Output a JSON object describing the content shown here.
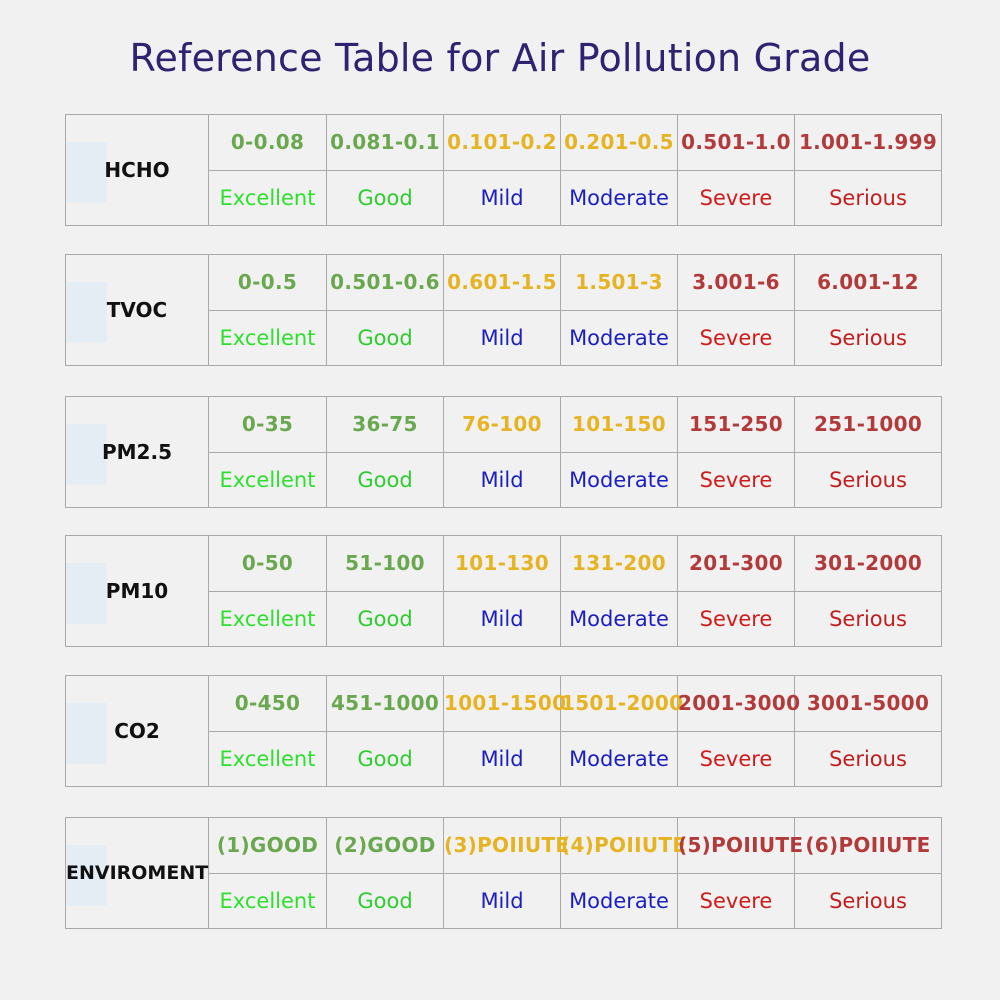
{
  "title": "Reference Table for Air Pollution Grade",
  "colors": {
    "title": "#2e2370",
    "excellent": "#2ee02e",
    "good": "#2ecc2e",
    "mild": "#1b1fbf",
    "moderate": "#1b1fbf",
    "severe": "#d11b1b",
    "serious": "#c21e1e",
    "range_green": "#6aa84f",
    "range_yellow": "#e6b422",
    "range_red": "#b23a3a"
  },
  "grades": [
    "Excellent",
    "Good",
    "Mild",
    "Moderate",
    "Severe",
    "Serious"
  ],
  "tables": [
    {
      "name": "HCHO",
      "ranges": [
        "0-0.08",
        "0.081-0.1",
        "0.101-0.2",
        "0.201-0.5",
        "0.501-1.0",
        "1.001-1.999"
      ]
    },
    {
      "name": "TVOC",
      "ranges": [
        "0-0.5",
        "0.501-0.6",
        "0.601-1.5",
        "1.501-3",
        "3.001-6",
        "6.001-12"
      ]
    },
    {
      "name": "PM2.5",
      "ranges": [
        "0-35",
        "36-75",
        "76-100",
        "101-150",
        "151-250",
        "251-1000"
      ]
    },
    {
      "name": "PM10",
      "ranges": [
        "0-50",
        "51-100",
        "101-130",
        "131-200",
        "201-300",
        "301-2000"
      ]
    },
    {
      "name": "CO2",
      "ranges": [
        "0-450",
        "451-1000",
        "1001-1500",
        "1501-2000",
        "2001-3000",
        "3001-5000"
      ]
    },
    {
      "name": "ENVIROMENT",
      "ranges": [
        "(1)GOOD",
        "(2)GOOD",
        "(3)POIIUTE",
        "(4)POIIUTE",
        "(5)POIIUTE",
        "(6)POIIUTE"
      ]
    }
  ]
}
